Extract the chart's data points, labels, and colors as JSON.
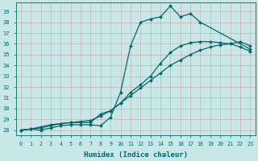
{
  "background_color": "#c8e8e8",
  "grid_color": "#d0e8e0",
  "line_color": "#006868",
  "xlabel": "Humidex (Indice chaleur)",
  "xlim": [
    -0.5,
    23.5
  ],
  "ylim": [
    27.5,
    39.8
  ],
  "yticks": [
    28,
    29,
    30,
    31,
    32,
    33,
    34,
    35,
    36,
    37,
    38,
    39
  ],
  "xticks": [
    0,
    1,
    2,
    3,
    4,
    5,
    6,
    7,
    8,
    9,
    10,
    11,
    12,
    13,
    14,
    15,
    16,
    17,
    18,
    19,
    20,
    21,
    22,
    23
  ],
  "line1_x": [
    0,
    1,
    2,
    3,
    4,
    5,
    6,
    7,
    8,
    9,
    10,
    11,
    12,
    13,
    14,
    15,
    16,
    17,
    18,
    23
  ],
  "line1_y": [
    28.0,
    28.1,
    28.0,
    28.2,
    28.4,
    28.5,
    28.5,
    28.5,
    28.4,
    29.2,
    31.5,
    35.8,
    38.0,
    38.3,
    38.5,
    39.5,
    38.5,
    38.8,
    38.0,
    35.5
  ],
  "line2_x": [
    0,
    1,
    2,
    3,
    4,
    5,
    6,
    7,
    8,
    9,
    10,
    11,
    12,
    13,
    14,
    15,
    16,
    17,
    18,
    19,
    20,
    21,
    22,
    23
  ],
  "line2_y": [
    28.0,
    28.1,
    28.3,
    28.5,
    28.6,
    28.7,
    28.7,
    28.7,
    29.5,
    29.8,
    30.5,
    31.5,
    32.2,
    33.0,
    34.2,
    35.2,
    35.8,
    36.1,
    36.2,
    36.2,
    36.1,
    36.0,
    36.2,
    35.8
  ],
  "line3_x": [
    0,
    1,
    2,
    3,
    4,
    5,
    6,
    7,
    8,
    9,
    10,
    11,
    12,
    13,
    14,
    15,
    16,
    17,
    18,
    19,
    20,
    21,
    22,
    23
  ],
  "line3_y": [
    28.0,
    28.1,
    28.2,
    28.4,
    28.6,
    28.7,
    28.8,
    28.9,
    29.3,
    29.8,
    30.5,
    31.2,
    31.9,
    32.6,
    33.3,
    34.0,
    34.5,
    35.0,
    35.4,
    35.7,
    35.9,
    36.0,
    35.7,
    35.3
  ]
}
